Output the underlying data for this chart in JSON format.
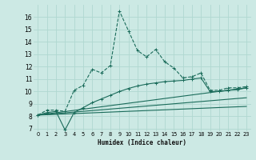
{
  "title": "",
  "xlabel": "Humidex (Indice chaleur)",
  "bg_color": "#cce9e4",
  "grid_color": "#b0d8d0",
  "line_color": "#1a6b5a",
  "xlim": [
    -0.5,
    23.5
  ],
  "ylim": [
    6.8,
    17.0
  ],
  "yticks": [
    7,
    8,
    9,
    10,
    11,
    12,
    13,
    14,
    15,
    16
  ],
  "xticks": [
    0,
    1,
    2,
    3,
    4,
    5,
    6,
    7,
    8,
    9,
    10,
    11,
    12,
    13,
    14,
    15,
    16,
    17,
    18,
    19,
    20,
    21,
    22,
    23
  ],
  "series1_x": [
    0,
    1,
    2,
    3,
    4,
    5,
    6,
    7,
    8,
    9,
    10,
    11,
    12,
    13,
    14,
    15,
    16,
    17,
    18,
    19,
    20,
    21,
    22,
    23
  ],
  "series1_y": [
    8.1,
    8.5,
    8.5,
    8.4,
    10.1,
    10.5,
    11.8,
    11.5,
    12.1,
    16.5,
    14.9,
    13.3,
    12.8,
    13.4,
    12.4,
    11.9,
    11.1,
    11.2,
    11.5,
    10.1,
    10.1,
    10.3,
    10.3,
    10.4
  ],
  "series2_x": [
    0,
    1,
    2,
    3,
    4,
    5,
    6,
    7,
    8,
    9,
    10,
    11,
    12,
    13,
    14,
    15,
    16,
    17,
    18,
    19,
    20,
    21,
    22,
    23
  ],
  "series2_y": [
    8.1,
    8.3,
    8.4,
    6.9,
    8.3,
    8.7,
    9.1,
    9.4,
    9.7,
    10.0,
    10.25,
    10.45,
    10.6,
    10.7,
    10.8,
    10.85,
    10.9,
    11.0,
    11.1,
    10.0,
    10.0,
    10.1,
    10.15,
    10.3
  ],
  "series3_x": [
    0,
    23
  ],
  "series3_y": [
    8.1,
    10.3
  ],
  "series4_x": [
    0,
    23
  ],
  "series4_y": [
    8.1,
    9.5
  ],
  "series5_x": [
    0,
    23
  ],
  "series5_y": [
    8.1,
    8.8
  ]
}
